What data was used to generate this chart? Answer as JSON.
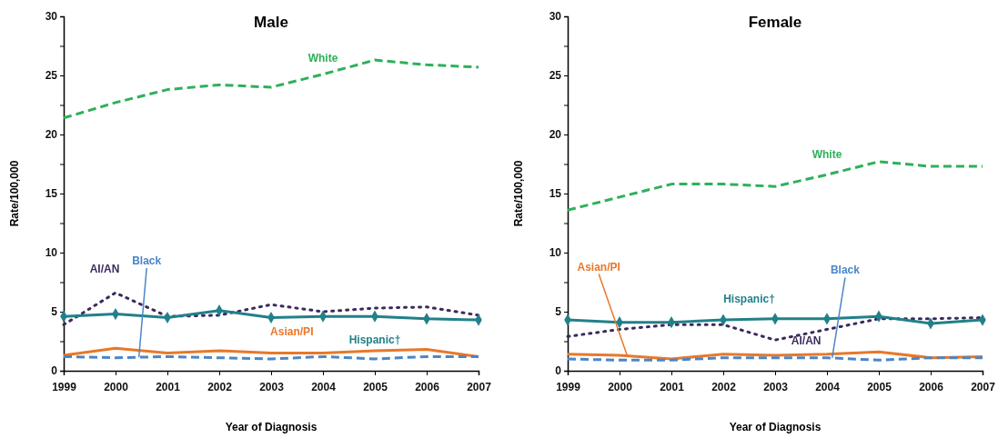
{
  "chart_data": [
    {
      "type": "line",
      "title": "Male",
      "xlabel": "Year of Diagnosis",
      "ylabel": "Rate/100,000",
      "x": [
        1999,
        2000,
        2001,
        2002,
        2003,
        2004,
        2005,
        2006,
        2007
      ],
      "xlim": [
        1999,
        2007
      ],
      "xticks": [
        1999,
        2000,
        2001,
        2002,
        2003,
        2004,
        2005,
        2006,
        2007
      ],
      "ylim": [
        0,
        30
      ],
      "yticks": [
        0,
        {
          "value": 2.5,
          "label": null
        },
        5,
        {
          "value": 7.5,
          "label": null
        },
        10,
        {
          "value": 12.5,
          "label": null
        },
        15,
        {
          "value": 17.5,
          "label": null
        },
        20,
        {
          "value": 22.5,
          "label": null
        },
        25,
        {
          "value": 27.5,
          "label": null
        },
        30
      ],
      "grid": false,
      "legend": false,
      "series": [
        {
          "name": "White",
          "color": "#2eb05a",
          "line_style": "dashed",
          "values": [
            21.4,
            22.7,
            23.8,
            24.2,
            24.0,
            25.1,
            26.3,
            25.9,
            25.7
          ]
        },
        {
          "name": "AI/AN",
          "color": "#3b2a5c",
          "line_style": "dotted",
          "values": [
            3.9,
            6.6,
            4.6,
            4.7,
            5.6,
            5.0,
            5.3,
            5.4,
            4.7
          ]
        },
        {
          "name": "Hispanic†",
          "color": "#21808a",
          "line_style": "solid",
          "marker": "diamond",
          "values": [
            4.6,
            4.8,
            4.5,
            5.1,
            4.5,
            4.6,
            4.6,
            4.4,
            4.3
          ]
        },
        {
          "name": "Asian/PI",
          "color": "#e8782a",
          "line_style": "solid",
          "values": [
            1.3,
            1.9,
            1.5,
            1.7,
            1.5,
            1.5,
            1.7,
            1.8,
            1.2
          ]
        },
        {
          "name": "Black",
          "color": "#4a86c8",
          "line_style": "dashed",
          "values": [
            1.2,
            1.1,
            1.2,
            1.1,
            1.0,
            1.2,
            1.0,
            1.2,
            1.2
          ]
        }
      ]
    },
    {
      "type": "line",
      "title": "Female",
      "xlabel": "Year of Diagnosis",
      "ylabel": "Rate/100,000",
      "x": [
        1999,
        2000,
        2001,
        2002,
        2003,
        2004,
        2005,
        2006,
        2007
      ],
      "xlim": [
        1999,
        2007
      ],
      "xticks": [
        1999,
        2000,
        2001,
        2002,
        2003,
        2004,
        2005,
        2006,
        2007
      ],
      "ylim": [
        0,
        30
      ],
      "yticks": [
        0,
        {
          "value": 2.5,
          "label": null
        },
        5,
        {
          "value": 7.5,
          "label": null
        },
        10,
        {
          "value": 12.5,
          "label": null
        },
        15,
        {
          "value": 17.5,
          "label": null
        },
        20,
        {
          "value": 22.5,
          "label": null
        },
        25,
        {
          "value": 27.5,
          "label": null
        },
        30
      ],
      "grid": false,
      "legend": false,
      "series": [
        {
          "name": "White",
          "color": "#2eb05a",
          "line_style": "dashed",
          "values": [
            13.6,
            14.7,
            15.8,
            15.8,
            15.6,
            16.6,
            17.7,
            17.3,
            17.3
          ]
        },
        {
          "name": "AI/AN",
          "color": "#3b2a5c",
          "line_style": "dotted",
          "values": [
            2.9,
            3.5,
            3.9,
            3.9,
            2.6,
            3.5,
            4.4,
            4.4,
            4.5
          ]
        },
        {
          "name": "Hispanic†",
          "color": "#21808a",
          "line_style": "solid",
          "marker": "diamond",
          "values": [
            4.3,
            4.1,
            4.1,
            4.3,
            4.4,
            4.4,
            4.6,
            4.0,
            4.3
          ]
        },
        {
          "name": "Asian/PI",
          "color": "#e8782a",
          "line_style": "solid",
          "values": [
            1.4,
            1.3,
            1.0,
            1.4,
            1.3,
            1.4,
            1.6,
            1.1,
            1.2
          ]
        },
        {
          "name": "Black",
          "color": "#4a86c8",
          "line_style": "dashed",
          "values": [
            1.0,
            0.9,
            0.9,
            1.1,
            1.1,
            1.1,
            0.9,
            1.1,
            1.1
          ]
        }
      ]
    }
  ]
}
